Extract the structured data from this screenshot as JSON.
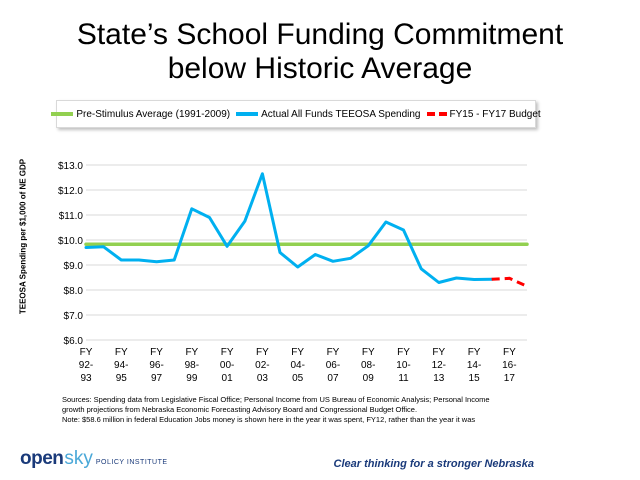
{
  "title_line1": "State’s School Funding Commitment",
  "title_line2": "below Historic Average",
  "legend": [
    {
      "label": "Pre-Stimulus Average (1991-2009)",
      "color": "#92d050",
      "style": "solid"
    },
    {
      "label": "Actual All Funds TEEOSA Spending",
      "color": "#00b0f0",
      "style": "solid"
    },
    {
      "label": "FY15 - FY17 Budget",
      "color": "#ff0000",
      "style": "dashed"
    }
  ],
  "chart_data": {
    "type": "line",
    "ylabel": "TEEOSA Spending per $1,000 of NE GDP",
    "ylim": [
      6,
      13
    ],
    "yticks": [
      "$6.0",
      "$7.0",
      "$8.0",
      "$9.0",
      "$10.0",
      "$11.0",
      "$12.0",
      "$13.0"
    ],
    "grid": true,
    "legend_position": "top",
    "categories": [
      [
        "FY",
        "92-",
        "93"
      ],
      [
        "FY",
        "94-",
        "95"
      ],
      [
        "FY",
        "96-",
        "97"
      ],
      [
        "FY",
        "98-",
        "99"
      ],
      [
        "FY",
        "00-",
        "01"
      ],
      [
        "FY",
        "02-",
        "03"
      ],
      [
        "FY",
        "04-",
        "05"
      ],
      [
        "FY",
        "06-",
        "07"
      ],
      [
        "FY",
        "08-",
        "09"
      ],
      [
        "FY",
        "10-",
        "11"
      ],
      [
        "FY",
        "12-",
        "13"
      ],
      [
        "FY",
        "14-",
        "15"
      ],
      [
        "FY",
        "16-",
        "17"
      ]
    ],
    "series": [
      {
        "name": "Pre-Stimulus Average (1991-2009)",
        "color": "#92d050",
        "x": [
          1992,
          2017
        ],
        "values": [
          9.83,
          9.83
        ]
      },
      {
        "name": "Actual All Funds TEEOSA Spending",
        "color": "#00b0f0",
        "x": [
          1992,
          1993,
          1994,
          1995,
          1996,
          1997,
          1998,
          1999,
          2000,
          2001,
          2002,
          2003,
          2004,
          2005,
          2006,
          2007,
          2008,
          2009,
          2010,
          2011,
          2012,
          2013,
          2014,
          2015
        ],
        "values": [
          9.7,
          9.73,
          9.2,
          9.2,
          9.13,
          9.2,
          11.25,
          10.9,
          9.75,
          10.75,
          12.65,
          9.5,
          8.92,
          9.42,
          9.15,
          9.27,
          9.77,
          10.72,
          10.4,
          8.85,
          8.3,
          8.48,
          8.42,
          8.43
        ]
      },
      {
        "name": "FY15 - FY17 Budget",
        "color": "#ff0000",
        "dashed": true,
        "x": [
          2015,
          2016,
          2017
        ],
        "values": [
          8.43,
          8.47,
          8.15
        ]
      }
    ]
  },
  "sources_line1": "Sources: Spending data from Legislative Fiscal Office; Personal Income from US Bureau of Economic Analysis; Personal Income",
  "sources_line2": "growth projections from Nebraska Economic Forecasting Advisory Board and Congressional Budget Office.",
  "sources_line3": "Note: $58.6 million in federal Education Jobs money is shown here in the year it was spent, FY12, rather than the year it was",
  "logo_open": "open",
  "logo_sky": "sky",
  "logo_institute": "POLICY INSTITUTE",
  "tagline": "Clear thinking for a stronger Nebraska"
}
